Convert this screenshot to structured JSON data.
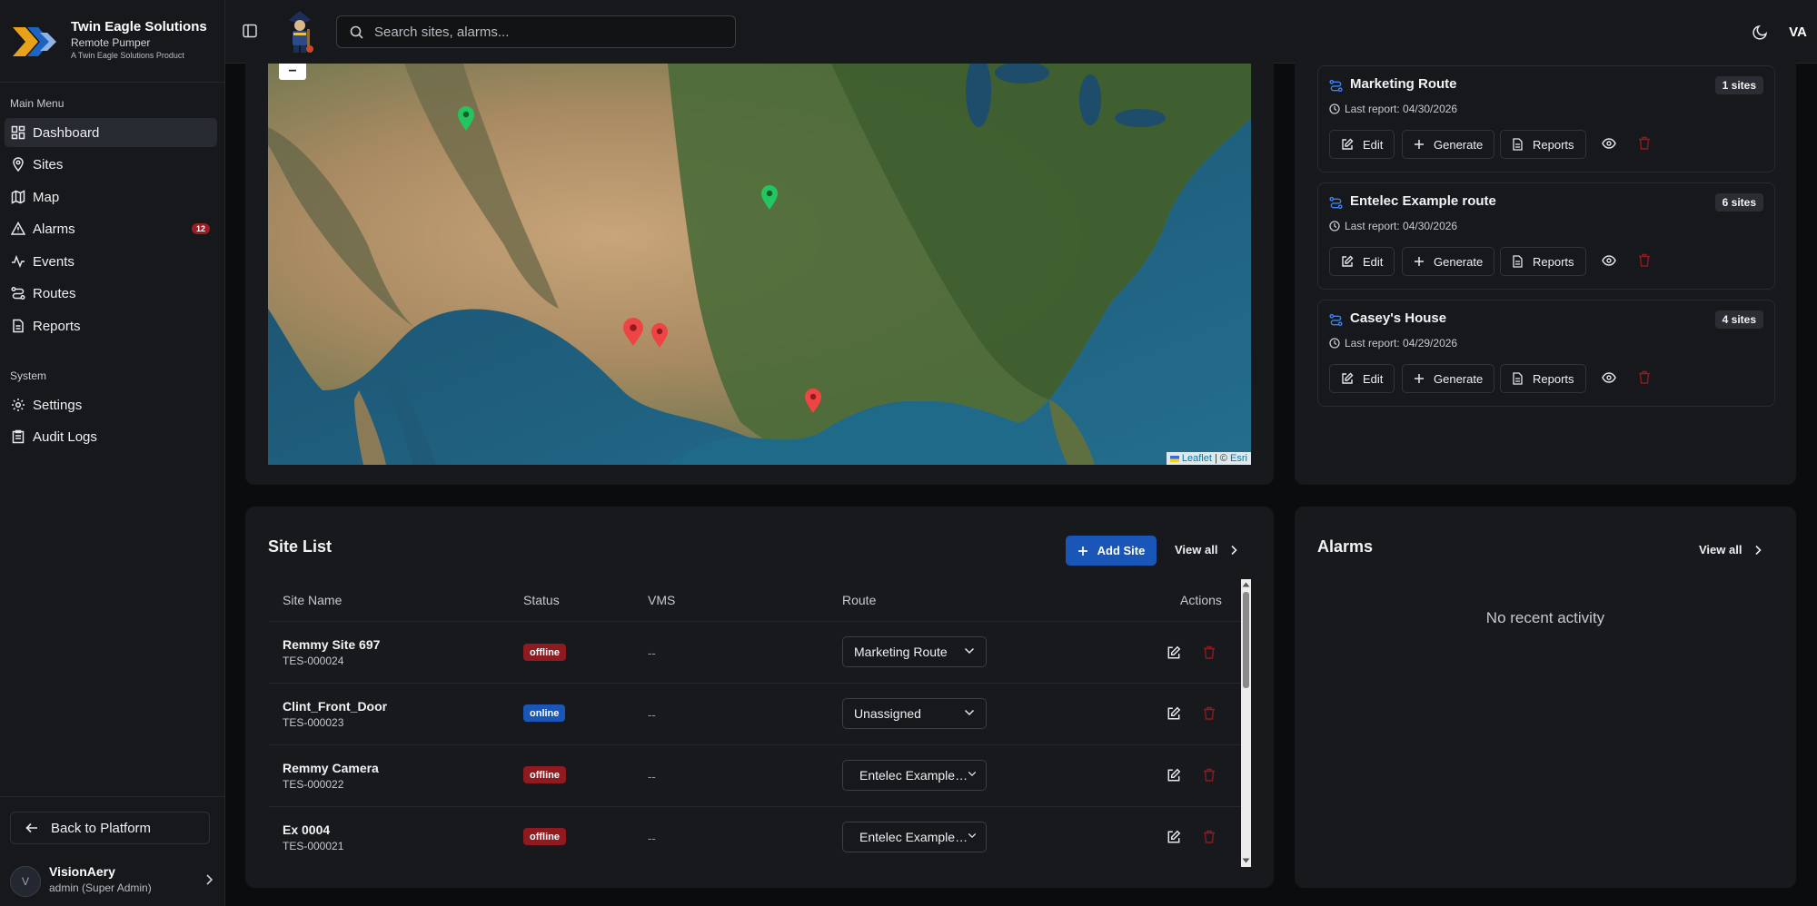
{
  "brand": {
    "title": "Twin Eagle Solutions",
    "subtitle": "Remote Pumper",
    "tagline": "A Twin Eagle Solutions Product",
    "logo_icon": "eagle-chevron-logo"
  },
  "sidebar": {
    "main_menu_label": "Main Menu",
    "system_label": "System",
    "items": [
      {
        "label": "Dashboard",
        "icon": "dashboard-icon",
        "active": true
      },
      {
        "label": "Sites",
        "icon": "map-pin-icon"
      },
      {
        "label": "Map",
        "icon": "map-icon"
      },
      {
        "label": "Alarms",
        "icon": "alert-triangle-icon",
        "badge": "12"
      },
      {
        "label": "Events",
        "icon": "activity-icon"
      },
      {
        "label": "Routes",
        "icon": "route-icon"
      },
      {
        "label": "Reports",
        "icon": "file-text-icon"
      }
    ],
    "system_items": [
      {
        "label": "Settings",
        "icon": "gear-icon"
      },
      {
        "label": "Audit Logs",
        "icon": "clipboard-list-icon"
      }
    ],
    "back_label": "Back to Platform",
    "user": {
      "initial": "V",
      "name": "VisionAery",
      "role": "admin (Super Admin)"
    }
  },
  "topbar": {
    "search_placeholder": "Search sites, alarms...",
    "avatar_initials": "VA"
  },
  "map": {
    "zoom_out": "−",
    "attribution_leaflet": "Leaflet",
    "attribution_sep": " | © ",
    "attribution_esri": "Esri",
    "markers": [
      {
        "status": "online",
        "color": "#22c55e"
      },
      {
        "status": "online",
        "color": "#22c55e"
      },
      {
        "status": "offline",
        "color": "#ef4444"
      },
      {
        "status": "offline",
        "color": "#ef4444"
      },
      {
        "status": "offline",
        "color": "#ef4444"
      }
    ]
  },
  "routes": [
    {
      "name": "Marketing Route",
      "count": "1 sites",
      "last_report": "Last report: 04/30/2026"
    },
    {
      "name": "Entelec Example route",
      "count": "6 sites",
      "last_report": "Last report: 04/30/2026"
    },
    {
      "name": "Casey's House",
      "count": "4 sites",
      "last_report": "Last report: 04/29/2026"
    }
  ],
  "route_actions": {
    "edit": "Edit",
    "generate": "Generate",
    "reports": "Reports"
  },
  "site_list": {
    "title": "Site List",
    "add_label": "Add Site",
    "view_all": "View all",
    "columns": [
      "Site Name",
      "Status",
      "VMS",
      "Route",
      "Actions"
    ],
    "rows": [
      {
        "name": "Remmy Site 697",
        "id": "TES-000024",
        "status": "offline",
        "vms": "--",
        "route": "Marketing Route"
      },
      {
        "name": "Clint_Front_Door",
        "id": "TES-000023",
        "status": "online",
        "vms": "--",
        "route": "Unassigned"
      },
      {
        "name": "Remmy Camera",
        "id": "TES-000022",
        "status": "offline",
        "vms": "--",
        "route": "Entelec Example route"
      },
      {
        "name": "Ex 0004",
        "id": "TES-000021",
        "status": "offline",
        "vms": "--",
        "route": "Entelec Example route"
      }
    ]
  },
  "alarms": {
    "title": "Alarms",
    "view_all": "View all",
    "empty": "No recent activity"
  },
  "colors": {
    "accent": "#1a56b8",
    "offline": "#8f1a1f",
    "background": "#0b0c0e",
    "card": "#17191d"
  }
}
